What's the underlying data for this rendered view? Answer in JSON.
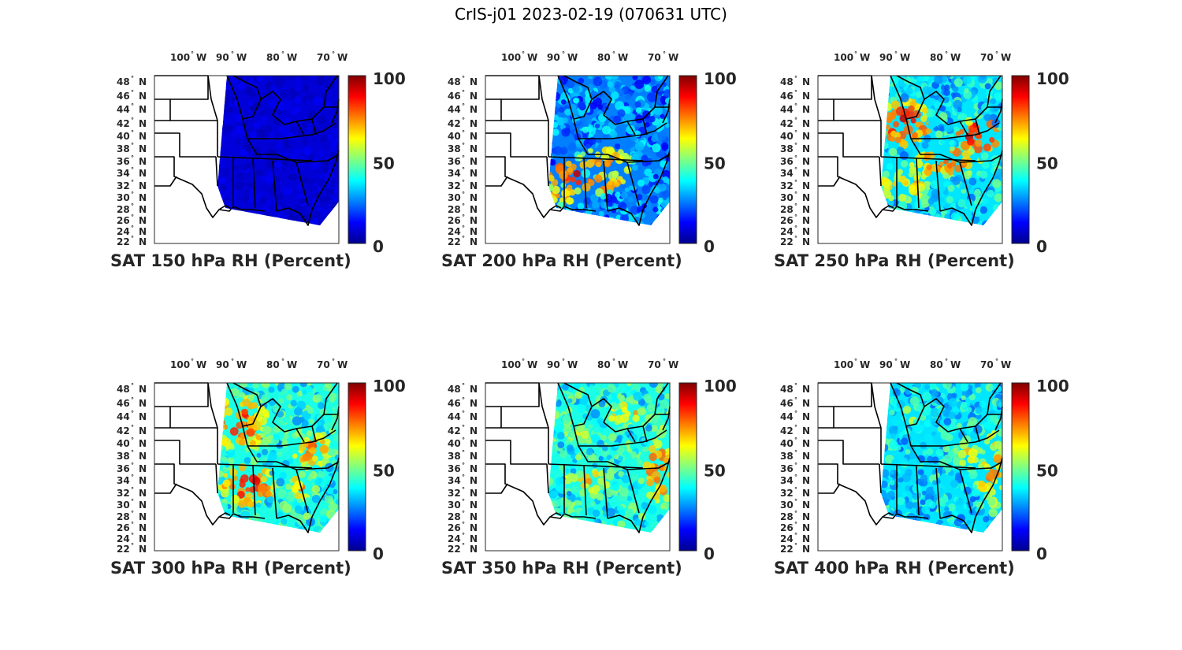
{
  "figure": {
    "title": "CrIS-j01 2023-02-19 (070631 UTC)"
  },
  "colormap": {
    "name": "jet",
    "min": 0,
    "max": 100,
    "ticks": [
      "100",
      "50",
      "0"
    ],
    "stops": [
      "#00008f",
      "#0000ff",
      "#0080ff",
      "#00ffff",
      "#80ff80",
      "#ffff00",
      "#ff8000",
      "#ff0000",
      "#800000"
    ]
  },
  "map": {
    "lon_ticks": [
      "100",
      "90",
      "80",
      "70"
    ],
    "lon_hemi": "W",
    "lat_ticks": [
      "48",
      "46",
      "44",
      "42",
      "40",
      "38",
      "36",
      "34",
      "32",
      "30",
      "28",
      "26",
      "24",
      "22"
    ],
    "lat_hemi": "N",
    "degree_symbol": "°",
    "region": "Eastern United States"
  },
  "chart_data": [
    {
      "type": "heatmap",
      "title": "SAT 150 hPa RH (Percent)",
      "level_hpa": 150,
      "variable": "RH",
      "units": "Percent",
      "clim": [
        0,
        100
      ],
      "typical_value": 8,
      "wet_zones": []
    },
    {
      "type": "heatmap",
      "title": "SAT 200 hPa RH (Percent)",
      "level_hpa": 200,
      "variable": "RH",
      "units": "Percent",
      "clim": [
        0,
        100
      ],
      "typical_value": 25,
      "wet_zones": [
        {
          "region": "Southeast band from Louisiana to Virginia",
          "value": 85
        }
      ]
    },
    {
      "type": "heatmap",
      "title": "SAT 250 hPa RH (Percent)",
      "level_hpa": 250,
      "variable": "RH",
      "units": "Percent",
      "clim": [
        0,
        100
      ],
      "typical_value": 35,
      "wet_zones": [
        {
          "region": "Great Lakes",
          "value": 85
        },
        {
          "region": "Mid-Atlantic / Northeast",
          "value": 90
        },
        {
          "region": "Tennessee Valley to Gulf coast",
          "value": 80
        }
      ]
    },
    {
      "type": "heatmap",
      "title": "SAT 300 hPa RH (Percent)",
      "level_hpa": 300,
      "variable": "RH",
      "units": "Percent",
      "clim": [
        0,
        100
      ],
      "typical_value": 40,
      "wet_zones": [
        {
          "region": "Great Lakes",
          "value": 80
        },
        {
          "region": "Gulf coast states",
          "value": 85
        },
        {
          "region": "Mid-Atlantic coast",
          "value": 75
        }
      ]
    },
    {
      "type": "heatmap",
      "title": "SAT 350 hPa RH (Percent)",
      "level_hpa": 350,
      "variable": "RH",
      "units": "Percent",
      "clim": [
        0,
        100
      ],
      "typical_value": 40,
      "wet_zones": [
        {
          "region": "Atlantic coast offshore",
          "value": 75
        },
        {
          "region": "Upper Midwest",
          "value": 60
        },
        {
          "region": "Tennessee Valley",
          "value": 70
        }
      ]
    },
    {
      "type": "heatmap",
      "title": "SAT 400 hPa RH (Percent)",
      "level_hpa": 400,
      "variable": "RH",
      "units": "Percent",
      "clim": [
        0,
        100
      ],
      "typical_value": 35,
      "wet_zones": [
        {
          "region": "Atlantic coast offshore",
          "value": 70
        },
        {
          "region": "Upper Midwest",
          "value": 55
        }
      ]
    }
  ]
}
